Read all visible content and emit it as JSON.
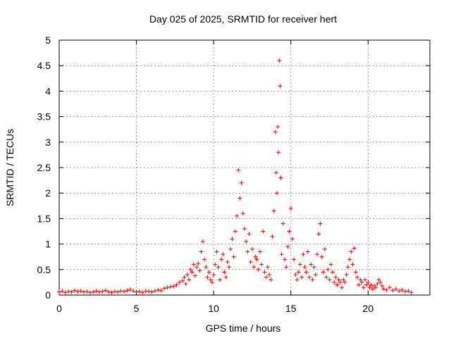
{
  "chart_data": {
    "type": "scatter",
    "title": "Day 025 of 2025, SRMTID for receiver hert",
    "xlabel": "GPS time / hours",
    "ylabel": "SRMTID / TECUs",
    "xlim": [
      0,
      24
    ],
    "ylim": [
      0,
      5
    ],
    "xticks": [
      0,
      5,
      10,
      15,
      20
    ],
    "xtick_labels": [
      "0",
      "5",
      "10",
      "15",
      "20"
    ],
    "yticks": [
      0,
      0.5,
      1,
      1.5,
      2,
      2.5,
      3,
      3.5,
      4,
      4.5,
      5
    ],
    "ytick_labels": [
      "0",
      "0.5",
      "1",
      "1.5",
      "2",
      "2.5",
      "3",
      "3.5",
      "4",
      "4.5",
      "5"
    ],
    "grid": true,
    "marker": "+",
    "color": "#ff0000",
    "series": [
      {
        "name": "SRMTID",
        "points": [
          [
            0.0,
            0.06
          ],
          [
            0.2,
            0.08
          ],
          [
            0.4,
            0.05
          ],
          [
            0.6,
            0.07
          ],
          [
            0.8,
            0.06
          ],
          [
            1.0,
            0.09
          ],
          [
            1.2,
            0.07
          ],
          [
            1.4,
            0.08
          ],
          [
            1.6,
            0.06
          ],
          [
            1.8,
            0.07
          ],
          [
            2.0,
            0.05
          ],
          [
            2.2,
            0.06
          ],
          [
            2.4,
            0.08
          ],
          [
            2.6,
            0.06
          ],
          [
            2.8,
            0.07
          ],
          [
            3.0,
            0.09
          ],
          [
            3.2,
            0.06
          ],
          [
            3.4,
            0.05
          ],
          [
            3.6,
            0.07
          ],
          [
            3.8,
            0.06
          ],
          [
            4.0,
            0.08
          ],
          [
            4.2,
            0.07
          ],
          [
            4.4,
            0.09
          ],
          [
            4.6,
            0.11
          ],
          [
            4.8,
            0.08
          ],
          [
            5.0,
            0.06
          ],
          [
            5.2,
            0.07
          ],
          [
            5.4,
            0.05
          ],
          [
            5.6,
            0.08
          ],
          [
            5.8,
            0.07
          ],
          [
            6.0,
            0.06
          ],
          [
            6.2,
            0.08
          ],
          [
            6.4,
            0.1
          ],
          [
            6.6,
            0.09
          ],
          [
            6.8,
            0.13
          ],
          [
            7.0,
            0.15
          ],
          [
            7.2,
            0.16
          ],
          [
            7.4,
            0.17
          ],
          [
            7.6,
            0.2
          ],
          [
            7.8,
            0.25
          ],
          [
            8.0,
            0.28
          ],
          [
            8.1,
            0.35
          ],
          [
            8.2,
            0.22
          ],
          [
            8.3,
            0.4
          ],
          [
            8.4,
            0.3
          ],
          [
            8.5,
            0.5
          ],
          [
            8.6,
            0.45
          ],
          [
            8.7,
            0.6
          ],
          [
            8.8,
            0.38
          ],
          [
            8.9,
            0.55
          ],
          [
            9.0,
            0.62
          ],
          [
            9.1,
            0.48
          ],
          [
            9.2,
            0.85
          ],
          [
            9.3,
            1.05
          ],
          [
            9.4,
            0.7
          ],
          [
            9.5,
            0.55
          ],
          [
            9.6,
            0.35
          ],
          [
            9.7,
            0.45
          ],
          [
            9.8,
            0.3
          ],
          [
            9.9,
            0.25
          ],
          [
            10.0,
            0.4
          ],
          [
            10.1,
            0.6
          ],
          [
            10.2,
            0.85
          ],
          [
            10.3,
            0.55
          ],
          [
            10.4,
            0.3
          ],
          [
            10.5,
            0.7
          ],
          [
            10.6,
            0.8
          ],
          [
            10.7,
            0.45
          ],
          [
            10.8,
            0.35
          ],
          [
            10.9,
            0.65
          ],
          [
            11.0,
            0.55
          ],
          [
            11.1,
            0.9
          ],
          [
            11.2,
            1.1
          ],
          [
            11.3,
            0.75
          ],
          [
            11.4,
            1.25
          ],
          [
            11.5,
            1.55
          ],
          [
            11.6,
            2.45
          ],
          [
            11.7,
            1.9
          ],
          [
            11.8,
            2.2
          ],
          [
            11.9,
            1.6
          ],
          [
            12.0,
            1.3
          ],
          [
            12.1,
            1.05
          ],
          [
            12.2,
            0.85
          ],
          [
            12.3,
            1.2
          ],
          [
            12.4,
            0.65
          ],
          [
            12.5,
            0.9
          ],
          [
            12.6,
            0.55
          ],
          [
            12.7,
            0.75
          ],
          [
            12.8,
            0.7
          ],
          [
            12.9,
            0.5
          ],
          [
            13.0,
            0.85
          ],
          [
            13.1,
            0.6
          ],
          [
            13.2,
            1.25
          ],
          [
            13.3,
            0.45
          ],
          [
            13.4,
            0.35
          ],
          [
            13.5,
            0.55
          ],
          [
            13.6,
            0.4
          ],
          [
            13.7,
            0.3
          ],
          [
            13.8,
            1.15
          ],
          [
            13.9,
            1.65
          ],
          [
            14.0,
            3.2
          ],
          [
            14.05,
            2.4
          ],
          [
            14.1,
            2.0
          ],
          [
            14.15,
            3.3
          ],
          [
            14.2,
            2.8
          ],
          [
            14.25,
            4.6
          ],
          [
            14.3,
            4.1
          ],
          [
            14.35,
            2.3
          ],
          [
            14.4,
            0.8
          ],
          [
            14.5,
            1.4
          ],
          [
            14.6,
            0.7
          ],
          [
            14.7,
            0.55
          ],
          [
            14.8,
            0.95
          ],
          [
            14.9,
            1.25
          ],
          [
            15.0,
            1.7
          ],
          [
            15.1,
            1.1
          ],
          [
            15.2,
            0.7
          ],
          [
            15.3,
            0.4
          ],
          [
            15.4,
            0.3
          ],
          [
            15.5,
            0.45
          ],
          [
            15.6,
            0.6
          ],
          [
            15.7,
            0.35
          ],
          [
            15.8,
            0.8
          ],
          [
            15.9,
            0.55
          ],
          [
            16.0,
            0.45
          ],
          [
            16.1,
            0.85
          ],
          [
            16.2,
            0.35
          ],
          [
            16.3,
            0.6
          ],
          [
            16.4,
            0.3
          ],
          [
            16.5,
            0.55
          ],
          [
            16.6,
            0.4
          ],
          [
            16.7,
            0.8
          ],
          [
            16.8,
            1.2
          ],
          [
            16.9,
            1.4
          ],
          [
            17.0,
            0.75
          ],
          [
            17.1,
            0.45
          ],
          [
            17.2,
            0.9
          ],
          [
            17.3,
            0.35
          ],
          [
            17.4,
            0.5
          ],
          [
            17.5,
            0.3
          ],
          [
            17.6,
            0.6
          ],
          [
            17.7,
            0.45
          ],
          [
            17.8,
            0.25
          ],
          [
            17.9,
            0.35
          ],
          [
            18.0,
            0.2
          ],
          [
            18.1,
            0.3
          ],
          [
            18.2,
            0.25
          ],
          [
            18.3,
            0.15
          ],
          [
            18.4,
            0.3
          ],
          [
            18.5,
            0.25
          ],
          [
            18.6,
            0.4
          ],
          [
            18.7,
            0.55
          ],
          [
            18.8,
            0.7
          ],
          [
            18.9,
            0.85
          ],
          [
            19.0,
            0.6
          ],
          [
            19.1,
            0.92
          ],
          [
            19.2,
            0.45
          ],
          [
            19.3,
            0.35
          ],
          [
            19.4,
            0.2
          ],
          [
            19.5,
            0.3
          ],
          [
            19.6,
            0.25
          ],
          [
            19.7,
            0.15
          ],
          [
            19.8,
            0.3
          ],
          [
            19.9,
            0.2
          ],
          [
            20.0,
            0.25
          ],
          [
            20.1,
            0.15
          ],
          [
            20.2,
            0.2
          ],
          [
            20.3,
            0.12
          ],
          [
            20.4,
            0.18
          ],
          [
            20.5,
            0.15
          ],
          [
            20.6,
            0.22
          ],
          [
            20.7,
            0.3
          ],
          [
            20.8,
            0.25
          ],
          [
            20.9,
            0.18
          ],
          [
            21.0,
            0.12
          ],
          [
            21.2,
            0.1
          ],
          [
            21.4,
            0.15
          ],
          [
            21.6,
            0.09
          ],
          [
            21.8,
            0.12
          ],
          [
            22.0,
            0.08
          ],
          [
            22.2,
            0.1
          ],
          [
            22.4,
            0.07
          ],
          [
            22.6,
            0.08
          ],
          [
            22.8,
            0.05
          ]
        ]
      }
    ]
  }
}
